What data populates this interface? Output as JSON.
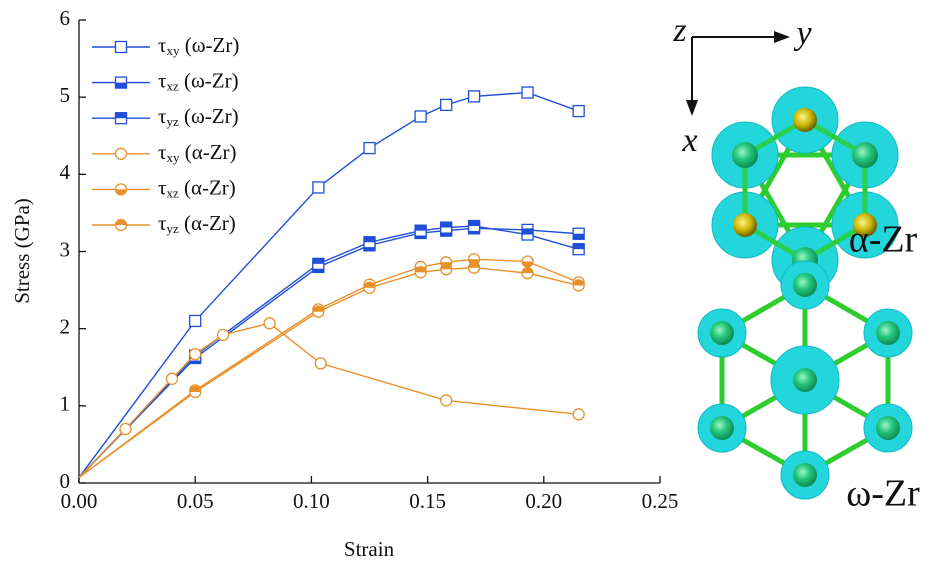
{
  "chart_data": {
    "type": "line",
    "xlabel": "Strain",
    "ylabel": "Stress (GPa)",
    "xlim": [
      0,
      0.25
    ],
    "ylim": [
      0,
      6
    ],
    "xticks": [
      {
        "value": 0,
        "label": "0.00"
      },
      0.05,
      {
        "value": 0.1,
        "label": "0.10"
      },
      0.15,
      {
        "value": 0.2,
        "label": "0.20"
      },
      0.25
    ],
    "yticks": [
      0,
      1,
      2,
      3,
      4,
      5,
      6
    ],
    "legend": "upper left",
    "series": [
      {
        "name": "τxy (ω-Zr)",
        "color": "#1f4fd8",
        "marker": "square",
        "fill": "none",
        "x": [
          0,
          0.05,
          0.103,
          0.125,
          0.147,
          0.158,
          0.17,
          0.193,
          0.215
        ],
        "values": [
          0.07,
          2.1,
          3.83,
          4.34,
          4.75,
          4.9,
          5.01,
          5.06,
          4.82
        ]
      },
      {
        "name": "τxz (ω-Zr)",
        "color": "#1f4fd8",
        "marker": "square",
        "fill": "bottom",
        "x": [
          0,
          0.05,
          0.103,
          0.125,
          0.147,
          0.158,
          0.17,
          0.193,
          0.215
        ],
        "values": [
          0.07,
          1.62,
          2.8,
          3.08,
          3.24,
          3.27,
          3.3,
          3.28,
          3.23
        ]
      },
      {
        "name": "τyz (ω-Zr)",
        "color": "#1f4fd8",
        "marker": "square",
        "fill": "top",
        "x": [
          0,
          0.05,
          0.103,
          0.125,
          0.147,
          0.158,
          0.17,
          0.193,
          0.215
        ],
        "values": [
          0.07,
          1.65,
          2.84,
          3.12,
          3.27,
          3.31,
          3.33,
          3.22,
          3.03
        ]
      },
      {
        "name": "τxy (α-Zr)",
        "color": "#e8902a",
        "marker": "circle",
        "fill": "none",
        "x": [
          0,
          0.02,
          0.04,
          0.05,
          0.062,
          0.082,
          0.104,
          0.158,
          0.215
        ],
        "values": [
          0.07,
          0.7,
          1.35,
          1.67,
          1.92,
          2.07,
          1.55,
          1.07,
          0.89
        ]
      },
      {
        "name": "τxz (α-Zr)",
        "color": "#e8902a",
        "marker": "circle",
        "fill": "bottom",
        "x": [
          0,
          0.05,
          0.103,
          0.125,
          0.147,
          0.158,
          0.17,
          0.193,
          0.215
        ],
        "values": [
          0.07,
          1.2,
          2.25,
          2.57,
          2.8,
          2.86,
          2.9,
          2.87,
          2.6
        ]
      },
      {
        "name": "τyz (α-Zr)",
        "color": "#e8902a",
        "marker": "circle",
        "fill": "top",
        "x": [
          0,
          0.05,
          0.103,
          0.125,
          0.147,
          0.158,
          0.17,
          0.193,
          0.215
        ],
        "values": [
          0.07,
          1.18,
          2.22,
          2.53,
          2.73,
          2.77,
          2.79,
          2.72,
          2.56
        ]
      }
    ],
    "annotations": [
      "z",
      "y",
      "x",
      "α-Zr",
      "ω-Zr"
    ]
  }
}
